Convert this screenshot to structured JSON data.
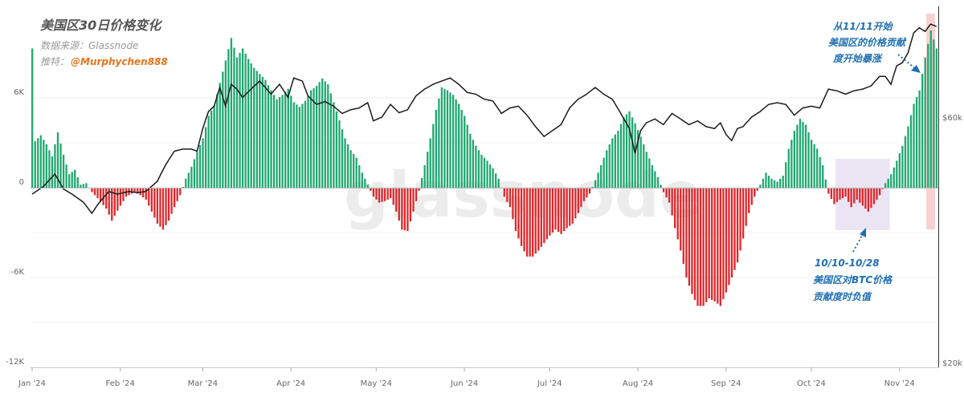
{
  "header": {
    "title": "美国区30日价格变化",
    "source": "数据来源：Glassnode",
    "recommend_label": "推特：",
    "handle": "@Murphychen888"
  },
  "watermark": "glassnode",
  "annotations": {
    "top": [
      "从11/11开始",
      "美国区的价格贡献",
      "度开始暴涨"
    ],
    "bottom": [
      "10/10-10/28",
      "美国区对BTC价格",
      "贡献度时负值"
    ]
  },
  "colors": {
    "positive": "#1fa870",
    "negative": "#e0262a",
    "price": "#1a1a1a",
    "highlight_red": "#f7c9c9",
    "highlight_purple": "#e9e1f2",
    "annotation": "#1f6fb2"
  },
  "chart_data": {
    "type": "bar",
    "x_range": [
      "2024-01-01",
      "2024-11-15"
    ],
    "x_ticks": [
      "Jan '24",
      "Feb '24",
      "Mar '24",
      "Apr '24",
      "May '24",
      "Jun '24",
      "Jul '24",
      "Aug '24",
      "Sep '24",
      "Oct '24",
      "Nov '24"
    ],
    "y_left": {
      "ticks": [
        "6K",
        "0",
        "-6K",
        "-12K"
      ],
      "tick_values": [
        6000,
        0,
        -6000,
        -12000
      ],
      "ylim": [
        -12000,
        12000
      ]
    },
    "y_right": {
      "ticks": [
        "$60k",
        "$20k"
      ],
      "tick_values": [
        60000,
        20000
      ],
      "scale": "log"
    },
    "bar_knots": [
      [
        1,
        3100
      ],
      [
        3,
        3500
      ],
      [
        5,
        2900
      ],
      [
        7,
        2100
      ],
      [
        9,
        3700
      ],
      [
        11,
        2200
      ],
      [
        13,
        900
      ],
      [
        15,
        1200
      ],
      [
        17,
        200
      ],
      [
        19,
        300
      ],
      [
        21,
        -300
      ],
      [
        23,
        -700
      ],
      [
        26,
        -1400
      ],
      [
        28,
        -2200
      ],
      [
        31,
        -1200
      ],
      [
        33,
        -600
      ],
      [
        36,
        -300
      ],
      [
        38,
        -500
      ],
      [
        40,
        -800
      ],
      [
        42,
        -1600
      ],
      [
        44,
        -2400
      ],
      [
        46,
        -2800
      ],
      [
        48,
        -2200
      ],
      [
        50,
        -1300
      ],
      [
        52,
        -500
      ],
      [
        54,
        600
      ],
      [
        56,
        1400
      ],
      [
        58,
        2400
      ],
      [
        60,
        3300
      ],
      [
        62,
        4800
      ],
      [
        64,
        5500
      ],
      [
        66,
        7000
      ],
      [
        68,
        8500
      ],
      [
        70,
        10000
      ],
      [
        72,
        8700
      ],
      [
        74,
        9300
      ],
      [
        76,
        8600
      ],
      [
        78,
        8000
      ],
      [
        80,
        7600
      ],
      [
        82,
        7200
      ],
      [
        84,
        6500
      ],
      [
        86,
        5900
      ],
      [
        88,
        6200
      ],
      [
        90,
        6600
      ],
      [
        92,
        5700
      ],
      [
        94,
        5400
      ],
      [
        96,
        5800
      ],
      [
        98,
        6500
      ],
      [
        100,
        6800
      ],
      [
        102,
        7300
      ],
      [
        104,
        6900
      ],
      [
        106,
        5700
      ],
      [
        108,
        4500
      ],
      [
        110,
        3300
      ],
      [
        112,
        2500
      ],
      [
        114,
        2000
      ],
      [
        116,
        1000
      ],
      [
        118,
        200
      ],
      [
        120,
        -600
      ],
      [
        122,
        -1000
      ],
      [
        124,
        -900
      ],
      [
        126,
        -700
      ],
      [
        128,
        -1600
      ],
      [
        130,
        -2800
      ],
      [
        132,
        -2900
      ],
      [
        134,
        -1600
      ],
      [
        136,
        -200
      ],
      [
        138,
        1500
      ],
      [
        140,
        3300
      ],
      [
        142,
        5200
      ],
      [
        144,
        6700
      ],
      [
        146,
        6500
      ],
      [
        148,
        6200
      ],
      [
        150,
        5600
      ],
      [
        152,
        4800
      ],
      [
        154,
        3600
      ],
      [
        156,
        2800
      ],
      [
        158,
        2200
      ],
      [
        160,
        1800
      ],
      [
        162,
        1300
      ],
      [
        164,
        600
      ],
      [
        166,
        -600
      ],
      [
        168,
        -1300
      ],
      [
        170,
        -2900
      ],
      [
        172,
        -3900
      ],
      [
        174,
        -4600
      ],
      [
        176,
        -4600
      ],
      [
        178,
        -4200
      ],
      [
        180,
        -3700
      ],
      [
        182,
        -3200
      ],
      [
        184,
        -2800
      ],
      [
        186,
        -3100
      ],
      [
        188,
        -2700
      ],
      [
        190,
        -2400
      ],
      [
        192,
        -1700
      ],
      [
        194,
        -900
      ],
      [
        196,
        -400
      ],
      [
        198,
        500
      ],
      [
        200,
        1500
      ],
      [
        202,
        2500
      ],
      [
        204,
        3300
      ],
      [
        206,
        3800
      ],
      [
        208,
        4700
      ],
      [
        210,
        5100
      ],
      [
        212,
        4300
      ],
      [
        214,
        3400
      ],
      [
        216,
        2400
      ],
      [
        218,
        1500
      ],
      [
        220,
        700
      ],
      [
        222,
        -300
      ],
      [
        224,
        -1000
      ],
      [
        226,
        -2700
      ],
      [
        228,
        -4200
      ],
      [
        230,
        -6000
      ],
      [
        232,
        -7100
      ],
      [
        234,
        -7900
      ],
      [
        236,
        -7900
      ],
      [
        238,
        -7400
      ],
      [
        240,
        -7600
      ],
      [
        242,
        -7900
      ],
      [
        244,
        -7000
      ],
      [
        246,
        -6000
      ],
      [
        248,
        -5000
      ],
      [
        250,
        -3400
      ],
      [
        252,
        -1700
      ],
      [
        254,
        -600
      ],
      [
        256,
        200
      ],
      [
        258,
        1000
      ],
      [
        260,
        600
      ],
      [
        262,
        400
      ],
      [
        264,
        800
      ],
      [
        266,
        2600
      ],
      [
        268,
        3800
      ],
      [
        270,
        4600
      ],
      [
        272,
        4200
      ],
      [
        274,
        3200
      ],
      [
        276,
        2600
      ],
      [
        278,
        1500
      ],
      [
        280,
        -400
      ],
      [
        282,
        -1100
      ],
      [
        284,
        -800
      ],
      [
        286,
        -600
      ],
      [
        288,
        -1300
      ],
      [
        290,
        -800
      ],
      [
        292,
        -1200
      ],
      [
        294,
        -1600
      ],
      [
        296,
        -1100
      ],
      [
        298,
        -500
      ],
      [
        300,
        300
      ],
      [
        302,
        900
      ],
      [
        304,
        1800
      ],
      [
        306,
        2800
      ],
      [
        308,
        4100
      ],
      [
        310,
        5600
      ],
      [
        312,
        6500
      ],
      [
        314,
        8700
      ],
      [
        316,
        10500
      ],
      [
        318,
        9300
      ]
    ],
    "price_knots": [
      [
        0,
        42500
      ],
      [
        4,
        44000
      ],
      [
        8,
        46500
      ],
      [
        11,
        43500
      ],
      [
        14,
        42500
      ],
      [
        18,
        41000
      ],
      [
        21,
        39000
      ],
      [
        23,
        40500
      ],
      [
        25,
        41800
      ],
      [
        27,
        43000
      ],
      [
        30,
        42500
      ],
      [
        34,
        43000
      ],
      [
        37,
        42800
      ],
      [
        40,
        43000
      ],
      [
        44,
        45000
      ],
      [
        47,
        48500
      ],
      [
        50,
        51500
      ],
      [
        53,
        52000
      ],
      [
        56,
        52000
      ],
      [
        58,
        51500
      ],
      [
        60,
        57000
      ],
      [
        62,
        61500
      ],
      [
        64,
        63000
      ],
      [
        66,
        68500
      ],
      [
        68,
        63000
      ],
      [
        70,
        69500
      ],
      [
        72,
        68000
      ],
      [
        74,
        65500
      ],
      [
        77,
        68000
      ],
      [
        80,
        70500
      ],
      [
        84,
        66500
      ],
      [
        87,
        69500
      ],
      [
        90,
        65500
      ],
      [
        92,
        71500
      ],
      [
        95,
        70500
      ],
      [
        97,
        66000
      ],
      [
        100,
        63500
      ],
      [
        103,
        64300
      ],
      [
        106,
        63000
      ],
      [
        109,
        61000
      ],
      [
        112,
        62000
      ],
      [
        115,
        62500
      ],
      [
        118,
        64000
      ],
      [
        120,
        59000
      ],
      [
        123,
        60000
      ],
      [
        126,
        63500
      ],
      [
        129,
        61200
      ],
      [
        132,
        62000
      ],
      [
        135,
        66000
      ],
      [
        138,
        68000
      ],
      [
        141,
        69500
      ],
      [
        144,
        70500
      ],
      [
        147,
        71500
      ],
      [
        150,
        69500
      ],
      [
        153,
        67000
      ],
      [
        156,
        66500
      ],
      [
        159,
        65000
      ],
      [
        162,
        64500
      ],
      [
        165,
        61000
      ],
      [
        168,
        62500
      ],
      [
        171,
        63000
      ],
      [
        174,
        60500
      ],
      [
        177,
        57500
      ],
      [
        180,
        55000
      ],
      [
        183,
        56500
      ],
      [
        186,
        58000
      ],
      [
        189,
        62500
      ],
      [
        192,
        65000
      ],
      [
        195,
        66500
      ],
      [
        198,
        68500
      ],
      [
        201,
        66500
      ],
      [
        204,
        65000
      ],
      [
        207,
        61000
      ],
      [
        210,
        57000
      ],
      [
        212,
        51000
      ],
      [
        214,
        56500
      ],
      [
        216,
        58500
      ],
      [
        219,
        59500
      ],
      [
        222,
        58000
      ],
      [
        225,
        61000
      ],
      [
        228,
        59500
      ],
      [
        231,
        58000
      ],
      [
        234,
        59000
      ],
      [
        237,
        57500
      ],
      [
        240,
        57000
      ],
      [
        242,
        58500
      ],
      [
        244,
        55500
      ],
      [
        246,
        54000
      ],
      [
        248,
        57000
      ],
      [
        250,
        57500
      ],
      [
        253,
        60000
      ],
      [
        256,
        61500
      ],
      [
        259,
        63500
      ],
      [
        262,
        64000
      ],
      [
        265,
        63500
      ],
      [
        268,
        60500
      ],
      [
        271,
        62500
      ],
      [
        274,
        63000
      ],
      [
        277,
        62500
      ],
      [
        280,
        68000
      ],
      [
        283,
        67500
      ],
      [
        286,
        66500
      ],
      [
        289,
        67500
      ],
      [
        292,
        68000
      ],
      [
        295,
        69000
      ],
      [
        298,
        72000
      ],
      [
        300,
        72000
      ],
      [
        302,
        69500
      ],
      [
        304,
        75500
      ],
      [
        306,
        76500
      ],
      [
        308,
        80000
      ],
      [
        310,
        87500
      ],
      [
        312,
        89500
      ],
      [
        314,
        88000
      ],
      [
        316,
        91000
      ],
      [
        318,
        90000
      ]
    ],
    "annotations": [
      {
        "text": "从11/11开始 美国区的价格贡献 度开始暴涨",
        "date_start": "2024-11-11"
      },
      {
        "text": "10/10-10/28 美国区对BTC价格 贡献度时负值",
        "date_start": "2024-10-10",
        "date_end": "2024-10-28"
      }
    ]
  }
}
